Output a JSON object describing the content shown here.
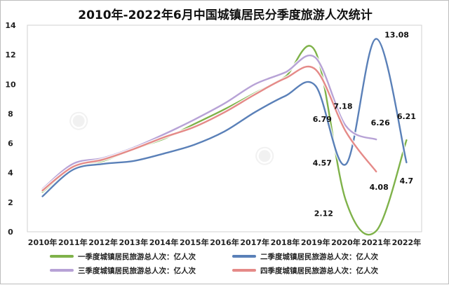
{
  "chart_data": {
    "type": "line",
    "title": "2010年-2022年6月中国城镇居民分季度旅游人次统计",
    "categories": [
      "2010年",
      "2011年",
      "2012年",
      "2013年",
      "2014年",
      "2015年",
      "2016年",
      "2017年",
      "2018年",
      "2019年",
      "2020年",
      "2021年",
      "2022年"
    ],
    "ylim": [
      0,
      14
    ],
    "yticks": [
      0,
      2,
      4,
      6,
      8,
      10,
      12,
      14
    ],
    "grid": false,
    "legend_position": "bottom",
    "series": [
      {
        "name": "一季度城镇居民旅游总人次：亿人次",
        "color": "#7fb24a",
        "values": [
          2.7,
          4.3,
          4.8,
          5.6,
          6.3,
          7.3,
          8.3,
          9.4,
          10.5,
          12.2,
          2.12,
          0.05,
          6.21
        ]
      },
      {
        "name": "二季度城镇居民旅游总人次：亿人次",
        "color": "#5a80b8",
        "values": [
          2.4,
          4.2,
          4.6,
          4.8,
          5.3,
          5.9,
          6.8,
          8.1,
          9.2,
          9.9,
          4.57,
          13.08,
          4.7
        ]
      },
      {
        "name": "三季度城镇居民旅游总人次：亿人次",
        "color": "#b7a2d6",
        "values": [
          2.9,
          4.6,
          5.0,
          5.7,
          6.6,
          7.6,
          8.7,
          10.0,
          10.8,
          11.8,
          7.18,
          6.26,
          null
        ]
      },
      {
        "name": "四季度城镇居民旅游总人次：亿人次",
        "color": "#e58a88",
        "values": [
          2.8,
          4.4,
          4.9,
          5.6,
          6.4,
          7.1,
          8.1,
          9.3,
          10.4,
          11.0,
          6.79,
          4.08,
          null
        ]
      }
    ],
    "data_labels": [
      {
        "series": 1,
        "index": 11,
        "text": "13.08"
      },
      {
        "series": 2,
        "index": 10,
        "text": "7.18"
      },
      {
        "series": 3,
        "index": 10,
        "text": "6.79"
      },
      {
        "series": 2,
        "index": 11,
        "text": "6.26"
      },
      {
        "series": 0,
        "index": 12,
        "text": "6.21"
      },
      {
        "series": 1,
        "index": 10,
        "text": "4.57"
      },
      {
        "series": 3,
        "index": 11,
        "text": "4.08"
      },
      {
        "series": 1,
        "index": 12,
        "text": "4.7"
      },
      {
        "series": 0,
        "index": 10,
        "text": "2.12"
      }
    ]
  }
}
